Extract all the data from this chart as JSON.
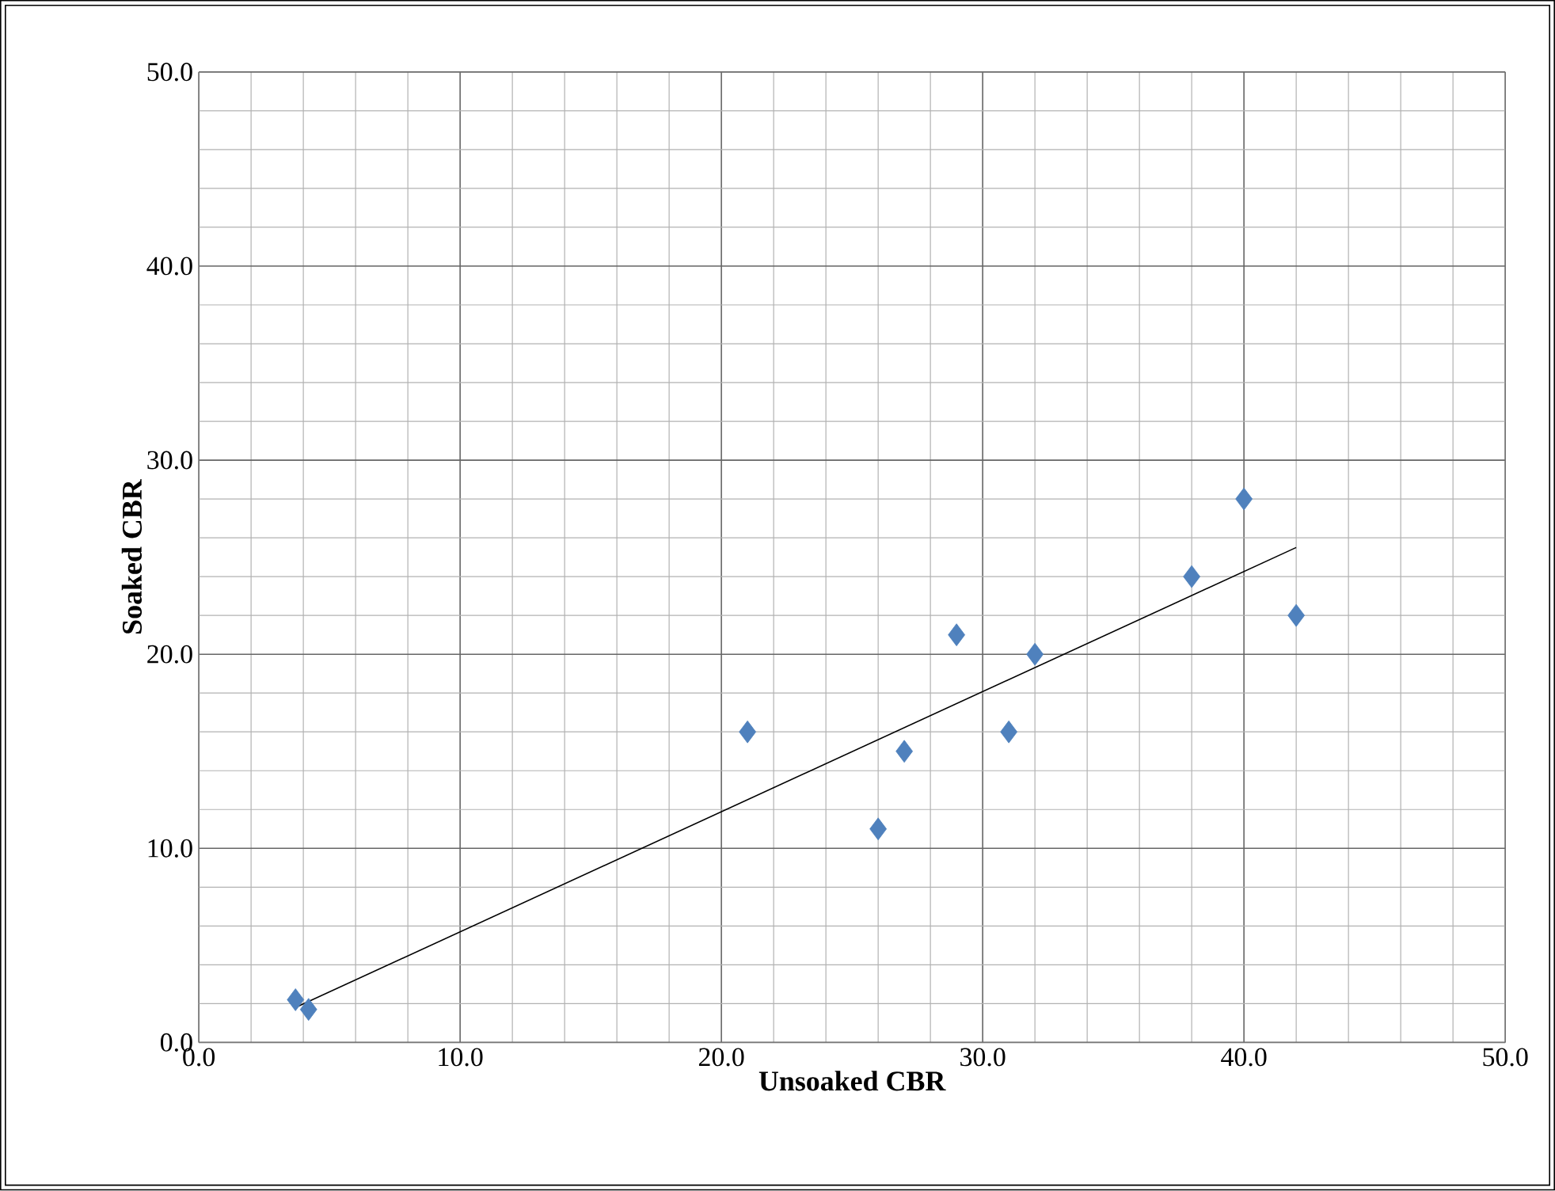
{
  "chart_data": {
    "type": "scatter",
    "xlabel": "Unsoaked CBR",
    "ylabel": "Soaked CBR",
    "series": [
      {
        "type": "scatter",
        "color": "#4f81bd",
        "marker": "diamond",
        "x": [
          3.7,
          4.2,
          21,
          26,
          27,
          29,
          31,
          32,
          38,
          40,
          42
        ],
        "values": [
          2.2,
          1.7,
          16,
          11,
          15,
          21,
          16,
          20,
          24,
          28,
          22
        ]
      },
      {
        "type": "line",
        "color": "#000000",
        "marker": "none",
        "x": [
          3.7,
          42
        ],
        "values": [
          1.8,
          25.5
        ]
      }
    ],
    "xlim": [
      0,
      50
    ],
    "ylim": [
      0,
      50
    ],
    "xticks": [
      {
        "value": 0,
        "label": "0.0"
      },
      {
        "value": 10,
        "label": "10.0"
      },
      {
        "value": 20,
        "label": "20.0"
      },
      {
        "value": 30,
        "label": "30.0"
      },
      {
        "value": 40,
        "label": "40.0"
      },
      {
        "value": 50,
        "label": "50.0"
      }
    ],
    "yticks": [
      {
        "value": 0,
        "label": "0.0"
      },
      {
        "value": 10,
        "label": "10.0"
      },
      {
        "value": 20,
        "label": "20.0"
      },
      {
        "value": 30,
        "label": "30.0"
      },
      {
        "value": 40,
        "label": "40.0"
      },
      {
        "value": 50,
        "label": "50.0"
      }
    ],
    "grid": true
  }
}
